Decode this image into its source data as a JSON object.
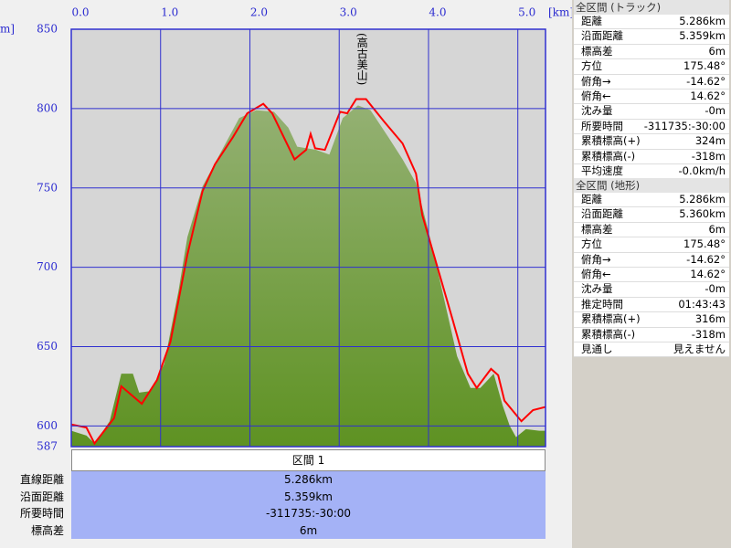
{
  "chart_data": {
    "type": "area",
    "xlabel": "[km]",
    "ylabel": "m]",
    "xlim": [
      0,
      5.31
    ],
    "ylim": [
      587,
      850
    ],
    "xticks": [
      {
        "value": 0,
        "label": "0.0"
      },
      {
        "value": 1,
        "label": "1.0"
      },
      {
        "value": 2,
        "label": "2.0"
      },
      {
        "value": 3,
        "label": "3.0"
      },
      {
        "value": 4,
        "label": "4.0"
      },
      {
        "value": 5,
        "label": "5.0"
      }
    ],
    "yticks": [
      587,
      600,
      650,
      700,
      750,
      800,
      850
    ],
    "grid": true,
    "annotations": [
      {
        "text": "(高古美山)",
        "x": 3.25
      }
    ],
    "series": [
      {
        "type": "area",
        "color": "#5e9222",
        "x": [
          0,
          0.17,
          0.26,
          0.43,
          0.56,
          0.69,
          0.76,
          0.89,
          1.04,
          1.2,
          1.3,
          1.47,
          1.66,
          1.88,
          2.07,
          2.27,
          2.43,
          2.53,
          2.74,
          2.89,
          3.04,
          3.21,
          3.35,
          3.55,
          3.71,
          3.86,
          3.99,
          4.11,
          4.32,
          4.47,
          4.58,
          4.73,
          4.83,
          4.91,
          4.98,
          5.09,
          5.24,
          5.31
        ],
        "values": [
          597,
          594,
          589,
          603,
          633,
          633,
          621,
          622,
          639,
          685,
          719,
          751,
          771,
          794,
          799,
          798,
          788,
          776,
          774,
          771,
          794,
          802,
          799,
          782,
          768,
          753,
          725,
          696,
          644,
          624,
          624,
          633,
          613,
          600,
          593,
          598,
          597,
          597
        ]
      },
      {
        "type": "line",
        "color": "#ff0000",
        "x": [
          0,
          0.17,
          0.26,
          0.48,
          0.56,
          0.79,
          0.96,
          1.11,
          1.2,
          1.3,
          1.47,
          1.61,
          1.81,
          1.97,
          2.15,
          2.25,
          2.5,
          2.63,
          2.68,
          2.73,
          2.84,
          3.01,
          3.09,
          3.19,
          3.3,
          3.5,
          3.71,
          3.86,
          3.93,
          4.09,
          4.27,
          4.44,
          4.54,
          4.7,
          4.78,
          4.85,
          5.04,
          5.17,
          5.31
        ],
        "values": [
          601,
          599,
          589,
          605,
          625,
          614,
          629,
          653,
          679,
          708,
          748,
          765,
          782,
          797,
          803,
          797,
          768,
          774,
          784,
          775,
          774,
          798,
          797,
          806,
          806,
          792,
          778,
          759,
          733,
          702,
          667,
          633,
          624,
          636,
          632,
          616,
          603,
          610,
          612
        ]
      }
    ]
  },
  "track_summary": {
    "title": "全区間 (トラック)",
    "rows": [
      [
        "距離",
        "5.286km"
      ],
      [
        "沿面距離",
        "5.359km"
      ],
      [
        "標高差",
        "6m"
      ],
      [
        "方位",
        "175.48°"
      ],
      [
        "俯角→",
        "-14.62°"
      ],
      [
        "俯角←",
        "14.62°"
      ],
      [
        "沈み量",
        "-0m"
      ],
      [
        "所要時間",
        "-311735:-30:00"
      ],
      [
        "累積標高(+)",
        "324m"
      ],
      [
        "累積標高(-)",
        "-318m"
      ],
      [
        "平均速度",
        "-0.0km/h"
      ]
    ]
  },
  "terrain_summary": {
    "title": "全区間 (地形)",
    "rows": [
      [
        "距離",
        "5.286km"
      ],
      [
        "沿面距離",
        "5.360km"
      ],
      [
        "標高差",
        "6m"
      ],
      [
        "方位",
        "175.48°"
      ],
      [
        "俯角→",
        "-14.62°"
      ],
      [
        "俯角←",
        "14.62°"
      ],
      [
        "沈み量",
        "-0m"
      ],
      [
        "推定時間",
        "01:43:43"
      ],
      [
        "累積標高(+)",
        "316m"
      ],
      [
        "累積標高(-)",
        "-318m"
      ],
      [
        "見通し",
        "見えません"
      ]
    ]
  },
  "section_table": {
    "title": "区間 1",
    "rows": [
      [
        "直線距離",
        "5.286km"
      ],
      [
        "沿面距離",
        "5.359km"
      ],
      [
        "所要時間",
        "-311735:-30:00"
      ],
      [
        "標高差",
        "6m"
      ]
    ]
  }
}
